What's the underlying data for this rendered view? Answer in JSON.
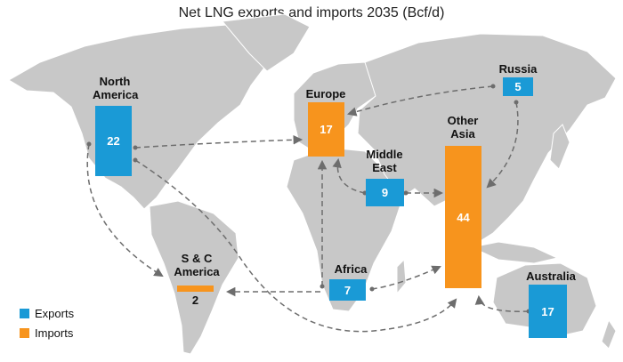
{
  "title": "Net LNG exports and imports 2035 (Bcf/d)",
  "colors": {
    "export": "#1a9ad6",
    "import": "#f7941d",
    "land": "#c8c8c8",
    "arrow": "#6d6d6d"
  },
  "regions": [
    {
      "id": "north-america",
      "name": "North America",
      "type": "export",
      "value": 22
    },
    {
      "id": "europe",
      "name": "Europe",
      "type": "import",
      "value": 17
    },
    {
      "id": "russia",
      "name": "Russia",
      "type": "export",
      "value": 5
    },
    {
      "id": "middle-east",
      "name": "Middle East",
      "type": "export",
      "value": 9
    },
    {
      "id": "other-asia",
      "name": "Other Asia",
      "type": "import",
      "value": 44
    },
    {
      "id": "africa",
      "name": "Africa",
      "type": "export",
      "value": 7
    },
    {
      "id": "sc-america",
      "name": "S & C America",
      "type": "import",
      "value": 2
    },
    {
      "id": "australia",
      "name": "Australia",
      "type": "export",
      "value": 17
    }
  ],
  "flows": [
    {
      "from": "North America",
      "to": "Europe"
    },
    {
      "from": "North America",
      "to": "S & C America"
    },
    {
      "from": "North America",
      "to": "Other Asia"
    },
    {
      "from": "Russia",
      "to": "Europe"
    },
    {
      "from": "Russia",
      "to": "Other Asia"
    },
    {
      "from": "Middle East",
      "to": "Europe"
    },
    {
      "from": "Middle East",
      "to": "Other Asia"
    },
    {
      "from": "Africa",
      "to": "Europe"
    },
    {
      "from": "Africa",
      "to": "S & C America"
    },
    {
      "from": "Africa",
      "to": "Other Asia"
    },
    {
      "from": "Australia",
      "to": "Other Asia"
    }
  ],
  "legend": {
    "exports": "Exports",
    "imports": "Imports"
  }
}
